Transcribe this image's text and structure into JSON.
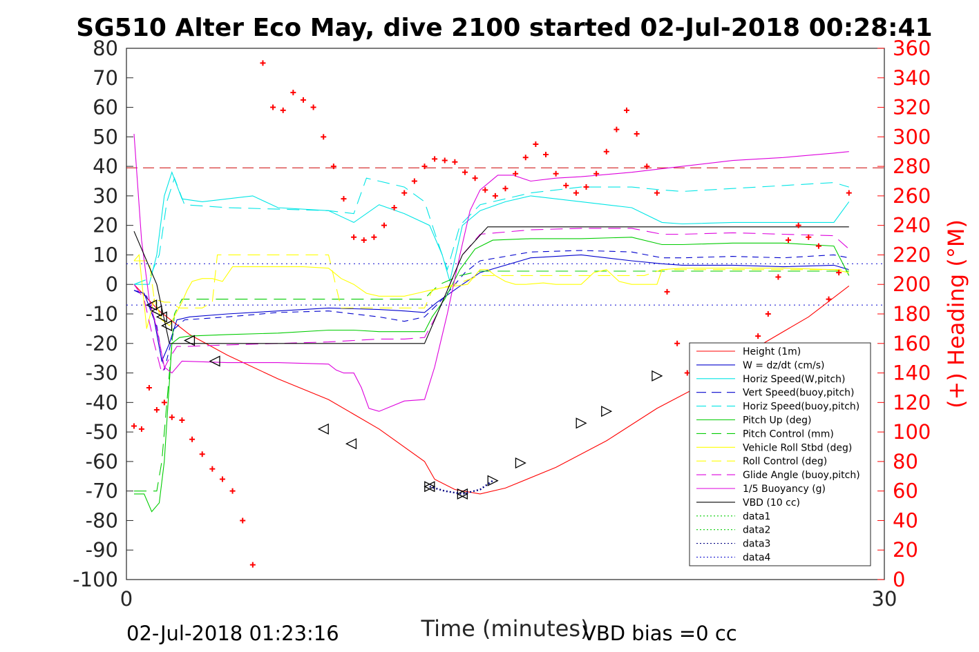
{
  "chart_data": {
    "type": "line",
    "title": "SG510 Alter Eco May, dive 2100 started 02-Jul-2018 00:28:41",
    "xlabel": "Time (minutes)",
    "ylabel_right": "(+) Heading (°M)",
    "xlim": [
      0,
      30
    ],
    "ylim_left": [
      -100,
      80
    ],
    "ylim_right": [
      0,
      360
    ],
    "x_ticks": [
      "0",
      "30"
    ],
    "y_ticks_left": [
      "80",
      "70",
      "60",
      "50",
      "40",
      "30",
      "20",
      "10",
      "0",
      "-10",
      "-20",
      "-30",
      "-40",
      "-50",
      "-60",
      "-70",
      "-80",
      "-90",
      "-100"
    ],
    "y_ticks_right": [
      "360",
      "340",
      "320",
      "300",
      "280",
      "260",
      "240",
      "220",
      "200",
      "180",
      "160",
      "140",
      "120",
      "100",
      "80",
      "60",
      "40",
      "20",
      "0"
    ],
    "footer_left": "02-Jul-2018 01:23:16",
    "footer_right": "VBD bias =0 cc",
    "legend_position": "bottom-right",
    "legend": [
      {
        "label": "Height (1m)",
        "color": "#ff0000",
        "style": "solid"
      },
      {
        "label": "W = dz/dt (cm/s)",
        "color": "#0000cd",
        "style": "solid"
      },
      {
        "label": "Horiz Speed(W,pitch)",
        "color": "#00e5e5",
        "style": "solid"
      },
      {
        "label": "Vert Speed(buoy,pitch)",
        "color": "#0000cd",
        "style": "dashed"
      },
      {
        "label": "Horiz Speed(buoy,pitch)",
        "color": "#00e5e5",
        "style": "dashed"
      },
      {
        "label": "Pitch Up (deg)",
        "color": "#00cc00",
        "style": "solid"
      },
      {
        "label": "Pitch Control (mm)",
        "color": "#00cc00",
        "style": "dashed"
      },
      {
        "label": "Vehicle Roll Stbd (deg)",
        "color": "#ffff00",
        "style": "solid"
      },
      {
        "label": "Roll Control (deg)",
        "color": "#ffff00",
        "style": "dashed"
      },
      {
        "label": "Glide Angle (buoy,pitch)",
        "color": "#dd00dd",
        "style": "dashed"
      },
      {
        "label": "1/5 Buoyancy (g)",
        "color": "#dd00dd",
        "style": "solid"
      },
      {
        "label": "VBD (10 cc)",
        "color": "#000000",
        "style": "solid"
      },
      {
        "label": "data1",
        "color": "#00cc00",
        "style": "dotted"
      },
      {
        "label": "data2",
        "color": "#00cc00",
        "style": "dotted"
      },
      {
        "label": "data3",
        "color": "#000080",
        "style": "dotted"
      },
      {
        "label": "data4",
        "color": "#0000cd",
        "style": "dotted"
      }
    ],
    "reference_lines": [
      {
        "y": 39.5,
        "color": "#cc0000",
        "style": "dashed"
      },
      {
        "y": 7,
        "color": "#0000cd",
        "style": "dotted"
      },
      {
        "y": -7,
        "color": "#0000cd",
        "style": "dotted"
      }
    ],
    "series": [
      {
        "name": "Height (1m)",
        "color": "#ff0000",
        "dash": "",
        "x": [
          0.3,
          1.3,
          2.5,
          4,
          6,
          8,
          10,
          11.8,
          12.2,
          13,
          14,
          15,
          17,
          19,
          21,
          23,
          25,
          27,
          28.6
        ],
        "y": [
          0,
          -9,
          -17,
          -24,
          -32,
          -39,
          -49,
          -60,
          -66,
          -69.5,
          -71,
          -69,
          -62,
          -53,
          -42,
          -33,
          -21,
          -11,
          -0.5
        ]
      },
      {
        "name": "W = dz/dt (cm/s)",
        "color": "#0000cd",
        "dash": "",
        "x": [
          0.3,
          0.7,
          1.1,
          1.4,
          1.7,
          2.0,
          2.5,
          4,
          6,
          8,
          10,
          11,
          11.8,
          12.3,
          12.8,
          13.3,
          14,
          16,
          18,
          20,
          21.2,
          22,
          24,
          26,
          28,
          28.6
        ],
        "y": [
          -2,
          -3,
          -12,
          -26,
          -20,
          -12,
          -11,
          -10,
          -9,
          -8,
          -8.5,
          -9,
          -9.5,
          -6,
          -3,
          0,
          4,
          9,
          10,
          8,
          7,
          6.5,
          6.5,
          6,
          6.5,
          5
        ]
      },
      {
        "name": "Horiz Speed(W,pitch)",
        "color": "#00e5e5",
        "dash": "",
        "x": [
          0.3,
          0.9,
          1.2,
          1.5,
          1.8,
          2.2,
          3,
          5,
          6,
          8,
          9,
          10,
          11,
          12,
          12.5,
          12.8,
          13.3,
          14,
          15,
          16,
          18,
          20,
          21.2,
          22,
          24,
          26,
          28,
          28.6
        ],
        "y": [
          0,
          0,
          10,
          30,
          38,
          29,
          28,
          30,
          26,
          25,
          21,
          27,
          24,
          20,
          10,
          1,
          20,
          25,
          28,
          30,
          28,
          26,
          21,
          20.5,
          21,
          21,
          21,
          28
        ]
      },
      {
        "name": "Vert Speed(buoy,pitch)",
        "color": "#0000cd",
        "dash": "9,7",
        "x": [
          0.3,
          0.8,
          1.2,
          1.5,
          1.9,
          2.3,
          4,
          6,
          8,
          9,
          10,
          11,
          11.8,
          12.4,
          12.9,
          13.4,
          14,
          16,
          18,
          20,
          21.2,
          22,
          24,
          26,
          28,
          28.6
        ],
        "y": [
          -2,
          -4,
          -14,
          -29,
          -15,
          -12,
          -11,
          -9.5,
          -9,
          -10,
          -11,
          -12.5,
          -11,
          -6,
          -1,
          4,
          8,
          11,
          11.5,
          11,
          9,
          9,
          9.5,
          9,
          10,
          9
        ]
      },
      {
        "name": "Horiz Speed(buoy,pitch)",
        "color": "#00e5e5",
        "dash": "18,10",
        "x": [
          0.3,
          0.9,
          1.3,
          1.6,
          1.9,
          2.3,
          4,
          6,
          8,
          9,
          9.5,
          10,
          11,
          11.8,
          12.3,
          12.7,
          13.2,
          14,
          16,
          18,
          20,
          21.2,
          22,
          24,
          26,
          28,
          28.6
        ],
        "y": [
          0,
          2,
          10,
          28,
          36,
          27,
          26,
          25.5,
          25,
          24,
          36,
          35,
          33,
          28,
          15,
          5,
          20,
          27,
          31,
          33,
          33,
          32,
          31.5,
          32.5,
          33.5,
          34.5,
          33
        ]
      },
      {
        "name": "Pitch Up (deg)",
        "color": "#00cc00",
        "dash": "",
        "x": [
          0.3,
          0.7,
          1.0,
          1.3,
          1.5,
          1.8,
          2.1,
          2.5,
          4,
          6,
          8,
          9,
          10,
          11.8,
          12.1,
          12.6,
          13.2,
          13.8,
          14.5,
          16,
          18,
          20,
          21.2,
          22,
          24,
          26,
          28,
          28.6
        ],
        "y": [
          -71,
          -71,
          -77,
          -74,
          -60,
          -20,
          -18,
          -17.5,
          -17,
          -16.5,
          -15.5,
          -15.5,
          -16,
          -16,
          -11,
          -5,
          5,
          12,
          15,
          15.5,
          15.5,
          16,
          13.5,
          13.5,
          14,
          14,
          13,
          3
        ]
      },
      {
        "name": "Pitch Control (mm)",
        "color": "#00cc00",
        "dash": "18,10",
        "x": [
          0.3,
          1.2,
          1.4,
          1.6,
          1.9,
          2.2,
          4,
          6,
          8,
          11.8,
          12.0,
          12.4,
          13.2,
          14,
          16,
          18,
          20,
          22,
          24,
          26,
          28,
          28.6
        ],
        "y": [
          -70,
          -70,
          -60,
          -40,
          -10,
          -5,
          -5,
          -5,
          -5,
          -5,
          -3,
          0,
          3,
          4.5,
          4.5,
          4.5,
          4.5,
          4.5,
          4.5,
          4.5,
          4.5,
          4.5
        ]
      },
      {
        "name": "Vehicle Roll Stbd (deg)",
        "color": "#ffff00",
        "dash": "",
        "x": [
          0.3,
          0.5,
          0.8,
          1.1,
          1.4,
          1.7,
          2.2,
          2.4,
          2.6,
          3,
          3.4,
          3.8,
          4.2,
          4.6,
          5,
          6,
          7,
          8,
          8.5,
          9,
          9.5,
          10,
          10.5,
          11,
          11.5,
          12,
          12.6,
          13.5,
          14,
          14.3,
          14.6,
          15,
          15.4,
          15.8,
          16.5,
          17,
          18,
          18.5,
          19,
          19.5,
          20,
          21,
          21.2,
          22,
          24,
          26,
          28,
          28.6
        ],
        "y": [
          8,
          10,
          -15,
          -5,
          -12,
          -14,
          -6,
          -2,
          1,
          2,
          2,
          1,
          6,
          6,
          6,
          6,
          6,
          5.5,
          2,
          0,
          -3,
          -4,
          -4,
          -4,
          -3,
          -2,
          -1,
          0,
          5,
          5,
          3,
          1,
          0,
          0,
          0.5,
          0,
          0,
          4,
          5,
          1,
          0,
          0,
          5,
          5.5,
          5.5,
          5.5,
          5,
          4
        ]
      },
      {
        "name": "Roll Control (deg)",
        "color": "#ffff00",
        "dash": "18,10",
        "x": [
          0.3,
          0.9,
          1.1,
          1.5,
          1.7,
          2.1,
          3,
          3.4,
          3.6,
          8,
          8.5,
          11.8,
          12.1,
          13,
          14,
          15,
          17,
          18.5,
          19,
          20.5,
          21.2,
          22,
          24,
          26,
          28.6
        ],
        "y": [
          8,
          8,
          -5,
          -6,
          -6,
          -8,
          -8,
          -6,
          10,
          10,
          -8,
          -8,
          -2,
          0,
          3,
          3,
          3,
          3,
          3,
          3,
          5,
          5,
          5,
          5,
          5
        ]
      },
      {
        "name": "Glide Angle (buoy,pitch)",
        "color": "#dd00dd",
        "dash": "18,10",
        "x": [
          0.3,
          0.7,
          1.1,
          1.4,
          1.7,
          2.0,
          2.4,
          4,
          6,
          8,
          9,
          10,
          11,
          11.8,
          12.3,
          12.8,
          13.3,
          14,
          16,
          18,
          20,
          21.2,
          22,
          24,
          26,
          28,
          28.6
        ],
        "y": [
          0,
          -5,
          -20,
          -30,
          -25,
          -21,
          -21,
          -20.5,
          -20,
          -19.5,
          -19,
          -18.5,
          -18.5,
          -18,
          -10,
          0,
          10,
          17,
          18.5,
          19,
          19,
          17,
          17,
          17.5,
          17,
          16.5,
          12
        ]
      },
      {
        "name": "1/5 Buoyancy (g)",
        "color": "#dd00dd",
        "dash": "",
        "x": [
          0.3,
          0.6,
          0.9,
          1.2,
          1.5,
          1.8,
          2.2,
          4,
          6,
          8,
          8.3,
          8.6,
          9,
          9.3,
          9.6,
          10,
          11,
          11.8,
          12.2,
          12.7,
          13.2,
          13.6,
          14,
          14.7,
          15.3,
          16,
          17,
          18,
          20,
          22,
          24,
          26,
          28,
          28.6
        ],
        "y": [
          51,
          15,
          -5,
          -15,
          -28,
          -30,
          -26,
          -26.5,
          -26.5,
          -27,
          -29,
          -30,
          -30,
          -35,
          -42,
          -43,
          -39.5,
          -39,
          -28,
          -10,
          10,
          25,
          32,
          37,
          37,
          35,
          36,
          36.5,
          38,
          40,
          42,
          43,
          44.5,
          45
        ]
      },
      {
        "name": "VBD (10 cc)",
        "color": "#000000",
        "dash": "",
        "x": [
          0.3,
          1.2,
          1.7,
          2.2,
          4,
          8,
          11.8,
          12.8,
          13.3,
          14.3,
          15,
          18,
          21,
          24,
          27,
          28.6
        ],
        "y": [
          18,
          0,
          -20,
          -20,
          -20,
          -20,
          -20,
          0,
          10,
          19.5,
          19.5,
          19.5,
          19.5,
          19.5,
          19.5,
          19.5
        ]
      },
      {
        "name": "Heading",
        "color": "#ff0000",
        "axis": "right",
        "marker": "+",
        "x": [
          0.3,
          0.6,
          0.9,
          1.2,
          1.5,
          1.8,
          2.2,
          2.6,
          3.0,
          3.4,
          3.8,
          4.2,
          4.6,
          5.0,
          5.4,
          5.8,
          6.2,
          6.6,
          7.0,
          7.4,
          7.8,
          8.2,
          8.6,
          9.0,
          9.4,
          9.8,
          10.2,
          10.6,
          11.0,
          11.4,
          11.8,
          12.2,
          12.6,
          13.0,
          13.4,
          13.8,
          14.2,
          14.6,
          15.0,
          15.4,
          15.8,
          16.2,
          16.6,
          17.0,
          17.4,
          17.8,
          18.2,
          18.6,
          19.0,
          19.4,
          19.8,
          20.2,
          20.6,
          21.0,
          21.4,
          21.8,
          22.2,
          22.6,
          23.0,
          23.4,
          23.8,
          24.2,
          24.6,
          25.0,
          25.4,
          25.8,
          26.2,
          26.6,
          27.0,
          27.4,
          27.8,
          28.2,
          28.6
        ],
        "y": [
          104,
          102,
          130,
          115,
          120,
          110,
          108,
          95,
          85,
          75,
          68,
          60,
          40,
          10,
          350,
          320,
          318,
          330,
          325,
          320,
          300,
          280,
          258,
          232,
          230,
          232,
          240,
          252,
          262,
          270,
          280,
          285,
          284,
          283,
          276,
          272,
          264,
          260,
          265,
          275,
          286,
          295,
          288,
          275,
          267,
          262,
          266,
          275,
          290,
          305,
          318,
          302,
          280,
          262,
          195,
          160,
          140,
          127,
          115,
          113,
          120,
          128,
          145,
          165,
          180,
          205,
          230,
          240,
          232,
          226,
          190,
          208,
          262
        ]
      }
    ],
    "markers": {
      "dive_triangles": {
        "x": [
          1.0,
          1.2,
          1.4,
          1.6,
          2.5,
          3.5,
          7.8,
          8.9,
          12.0,
          13.3
        ],
        "y": [
          -7,
          -9,
          -11,
          -14,
          -19,
          -26,
          -49,
          -54,
          -68.5,
          -71
        ]
      },
      "climb_triangles": {
        "x": [
          12.0,
          13.3,
          14.5,
          15.6,
          18.0,
          19.0,
          21.0
        ],
        "y": [
          -68.5,
          -71,
          -66.5,
          -60.5,
          -47,
          -43,
          -31
        ]
      }
    }
  }
}
